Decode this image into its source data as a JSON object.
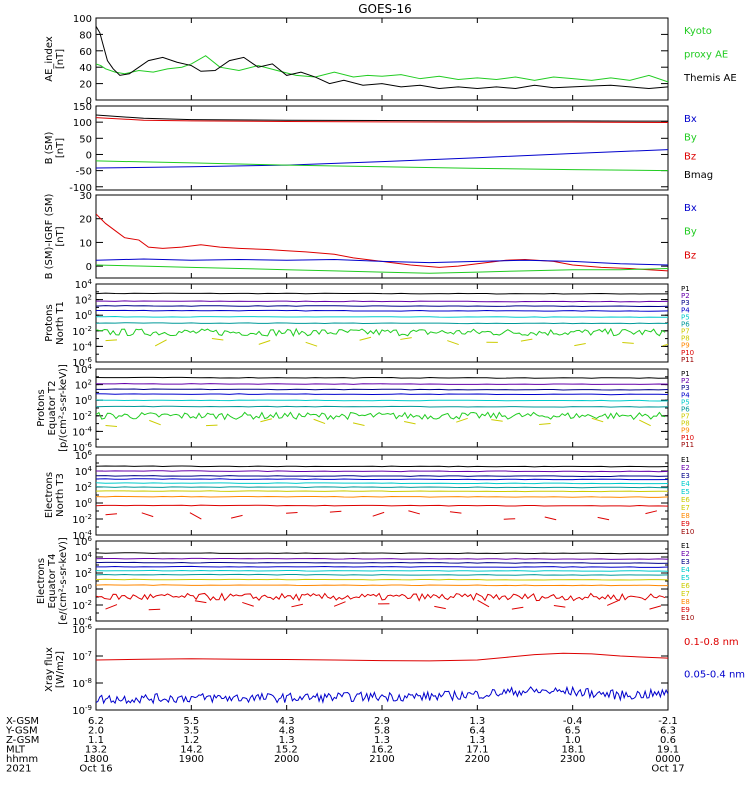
{
  "title": "GOES-16",
  "colors": {
    "black": "#000000",
    "green": "#22cc22",
    "blue": "#0000cc",
    "red": "#dd0000",
    "cyan": "#00cccc",
    "yellow": "#cccc00",
    "orange": "#ff8800",
    "purple": "#6600aa",
    "navy": "#000088",
    "teal": "#009999",
    "maroon": "#990000"
  },
  "chart_data": [
    {
      "type": "line",
      "panel": "ae-index",
      "ylabel": [
        "AE_index",
        "[nT]"
      ],
      "ylim": [
        0,
        100
      ],
      "yticks": [
        {
          "value": 0,
          "label": "0"
        },
        {
          "value": 20,
          "label": "20"
        },
        {
          "value": 40,
          "label": "40"
        },
        {
          "value": 60,
          "label": "60"
        },
        {
          "value": 80,
          "label": "80"
        },
        {
          "value": 100,
          "label": "100"
        }
      ],
      "legend": [
        {
          "text": "Kyoto",
          "color": "green"
        },
        {
          "text": "proxy AE",
          "color": "green"
        },
        {
          "text": "Themis AE",
          "color": "black"
        }
      ],
      "series": [
        {
          "name": "Kyoto proxy AE",
          "color": "green",
          "x": [
            0,
            0.05,
            0.1,
            0.2,
            0.3,
            0.45,
            0.6,
            0.75,
            0.9,
            1.0,
            1.15,
            1.3,
            1.5,
            1.7,
            1.9,
            2.1,
            2.3,
            2.5,
            2.7,
            2.85,
            3.0,
            3.2,
            3.4,
            3.6,
            3.8,
            4.0,
            4.2,
            4.4,
            4.6,
            4.8,
            5.0,
            5.2,
            5.4,
            5.6,
            5.8,
            6.0
          ],
          "y": [
            44,
            42,
            38,
            34,
            32,
            36,
            34,
            38,
            40,
            44,
            54,
            40,
            36,
            42,
            36,
            30,
            28,
            34,
            28,
            30,
            29,
            31,
            26,
            29,
            25,
            27,
            25,
            28,
            24,
            28,
            26,
            24,
            27,
            24,
            30,
            22
          ]
        },
        {
          "name": "Themis AE",
          "color": "black",
          "x": [
            0,
            0.04,
            0.08,
            0.12,
            0.18,
            0.25,
            0.35,
            0.45,
            0.55,
            0.7,
            0.85,
            1.0,
            1.1,
            1.25,
            1.4,
            1.55,
            1.7,
            1.85,
            2.0,
            2.15,
            2.3,
            2.45,
            2.6,
            2.8,
            3.0,
            3.2,
            3.4,
            3.6,
            3.8,
            4.0,
            4.2,
            4.4,
            4.6,
            4.8,
            5.0,
            5.2,
            5.4,
            5.6,
            5.8,
            6.0
          ],
          "y": [
            90,
            82,
            65,
            48,
            38,
            30,
            32,
            40,
            48,
            52,
            46,
            42,
            35,
            36,
            48,
            52,
            40,
            44,
            30,
            34,
            28,
            20,
            24,
            18,
            20,
            16,
            18,
            14,
            16,
            14,
            16,
            14,
            18,
            15,
            16,
            17,
            18,
            16,
            14,
            16
          ]
        }
      ]
    },
    {
      "type": "line",
      "panel": "b-sm",
      "ylabel": [
        "B (SM)",
        "[nT]"
      ],
      "ylim": [
        -110,
        150
      ],
      "yticks": [
        {
          "value": -100,
          "label": "-100"
        },
        {
          "value": -50,
          "label": "-50"
        },
        {
          "value": 0,
          "label": "0"
        },
        {
          "value": 50,
          "label": "50"
        },
        {
          "value": 100,
          "label": "100"
        },
        {
          "value": 150,
          "label": "150"
        }
      ],
      "legend": [
        {
          "text": "Bx",
          "color": "blue"
        },
        {
          "text": "By",
          "color": "green"
        },
        {
          "text": "Bz",
          "color": "red"
        },
        {
          "text": "Bmag",
          "color": "black"
        }
      ],
      "series": [
        {
          "name": "Bmag",
          "color": "black",
          "x": [
            0,
            0.5,
            1,
            2,
            3,
            4,
            5,
            6
          ],
          "y": [
            122,
            112,
            108,
            106,
            105,
            104,
            104,
            103
          ]
        },
        {
          "name": "Bz",
          "color": "red",
          "x": [
            0,
            0.5,
            1,
            2,
            3,
            4,
            5,
            6
          ],
          "y": [
            114,
            106,
            104,
            102,
            101,
            100,
            100,
            99
          ]
        },
        {
          "name": "Bx",
          "color": "blue",
          "x": [
            0,
            1,
            2,
            3,
            4,
            5,
            6
          ],
          "y": [
            -42,
            -38,
            -33,
            -22,
            -10,
            3,
            15
          ]
        },
        {
          "name": "By",
          "color": "green",
          "x": [
            0,
            1,
            2,
            3,
            4,
            5,
            6
          ],
          "y": [
            -20,
            -26,
            -33,
            -38,
            -43,
            -47,
            -50
          ]
        }
      ]
    },
    {
      "type": "line",
      "panel": "b-sm-igrf",
      "ylabel": [
        "B (SM)-IGRF (SM)",
        "[nT]"
      ],
      "ylim": [
        -5,
        30
      ],
      "yticks": [
        {
          "value": 0,
          "label": "0"
        },
        {
          "value": 10,
          "label": "10"
        },
        {
          "value": 20,
          "label": "20"
        },
        {
          "value": 30,
          "label": "30"
        }
      ],
      "legend": [
        {
          "text": "Bx",
          "color": "blue"
        },
        {
          "text": "By",
          "color": "green"
        },
        {
          "text": "Bz",
          "color": "red"
        }
      ],
      "series": [
        {
          "name": "Bz",
          "color": "red",
          "x": [
            0,
            0.1,
            0.2,
            0.3,
            0.45,
            0.55,
            0.7,
            0.9,
            1.1,
            1.3,
            1.5,
            1.8,
            2.0,
            2.2,
            2.5,
            2.7,
            2.9,
            3.1,
            3.3,
            3.6,
            3.8,
            4.0,
            4.3,
            4.5,
            4.8,
            5.0,
            5.3,
            5.6,
            5.8,
            6.0
          ],
          "y": [
            22,
            18,
            15,
            12,
            11,
            8,
            7.5,
            8,
            9,
            8,
            7.5,
            7,
            6.5,
            6,
            5,
            3.5,
            2.5,
            1.5,
            0.5,
            -0.5,
            0,
            1,
            2.5,
            2.8,
            2,
            0.5,
            -0.5,
            -1,
            -1.5,
            -2
          ]
        },
        {
          "name": "Bx",
          "color": "blue",
          "x": [
            0,
            0.5,
            1,
            1.5,
            2,
            2.5,
            3,
            3.5,
            4,
            4.5,
            5,
            5.5,
            6
          ],
          "y": [
            2.5,
            3,
            2.5,
            2.8,
            2.5,
            2.8,
            2,
            1.5,
            2,
            2.5,
            2,
            1,
            0.5
          ]
        },
        {
          "name": "By",
          "color": "green",
          "x": [
            0,
            0.5,
            1,
            1.5,
            2,
            2.5,
            3,
            3.5,
            4,
            4.5,
            5,
            5.5,
            6
          ],
          "y": [
            0.5,
            0,
            -0.5,
            -1,
            -1.5,
            -2,
            -2.5,
            -3,
            -2.5,
            -2,
            -1.5,
            -1.5,
            -1
          ]
        }
      ]
    },
    {
      "type": "line",
      "panel": "protons-north",
      "yscale": "log",
      "ylabel": [
        "Protons",
        "North T1"
      ],
      "ylim_exp": [
        -6,
        4
      ],
      "yticks_exp": [
        -6,
        -4,
        -2,
        0,
        2,
        4
      ],
      "legend": [
        {
          "text": "P1",
          "color": "black"
        },
        {
          "text": "P2",
          "color": "purple"
        },
        {
          "text": "P3",
          "color": "navy"
        },
        {
          "text": "P4",
          "color": "blue"
        },
        {
          "text": "P5",
          "color": "cyan"
        },
        {
          "text": "P6",
          "color": "teal"
        },
        {
          "text": "P7",
          "color": "yellow"
        },
        {
          "text": "P8",
          "color": "yellow"
        },
        {
          "text": "P9",
          "color": "orange"
        },
        {
          "text": "P10",
          "color": "red"
        },
        {
          "text": "P11",
          "color": "maroon"
        }
      ],
      "series": [
        {
          "color": "black",
          "log_level": 2.8
        },
        {
          "color": "purple",
          "log_level": 1.8
        },
        {
          "color": "navy",
          "log_level": 1.2
        },
        {
          "color": "blue",
          "log_level": 0.6
        },
        {
          "color": "cyan",
          "log_level": -0.2
        },
        {
          "color": "teal",
          "log_level": -1.0
        },
        {
          "color": "green",
          "log_level": -2.2,
          "noisy": true
        },
        {
          "color": "yellow",
          "log_level": -3.4,
          "segments": true
        }
      ]
    },
    {
      "type": "line",
      "panel": "protons-equator",
      "yscale": "log",
      "ylabel": [
        "Protons",
        "Equator T2",
        "[p/(cm²-s-sr-keV)]"
      ],
      "ylim_exp": [
        -6,
        4
      ],
      "yticks_exp": [
        -6,
        -4,
        -2,
        0,
        2,
        4
      ],
      "legend": [
        {
          "text": "P1",
          "color": "black"
        },
        {
          "text": "P2",
          "color": "purple"
        },
        {
          "text": "P3",
          "color": "navy"
        },
        {
          "text": "P4",
          "color": "blue"
        },
        {
          "text": "P5",
          "color": "cyan"
        },
        {
          "text": "P6",
          "color": "teal"
        },
        {
          "text": "P7",
          "color": "yellow"
        },
        {
          "text": "P8",
          "color": "yellow"
        },
        {
          "text": "P9",
          "color": "orange"
        },
        {
          "text": "P10",
          "color": "red"
        },
        {
          "text": "P11",
          "color": "maroon"
        }
      ],
      "series": [
        {
          "color": "black",
          "log_level": 2.9
        },
        {
          "color": "purple",
          "log_level": 2.1
        },
        {
          "color": "navy",
          "log_level": 1.4
        },
        {
          "color": "blue",
          "log_level": 0.8
        },
        {
          "color": "cyan",
          "log_level": 0.0
        },
        {
          "color": "teal",
          "log_level": -0.8
        },
        {
          "color": "green",
          "log_level": -2.0,
          "noisy": true
        },
        {
          "color": "yellow",
          "log_level": -2.9,
          "segments": true
        }
      ]
    },
    {
      "type": "line",
      "panel": "electrons-north",
      "yscale": "log",
      "ylabel": [
        "Electrons",
        "North T3"
      ],
      "ylim_exp": [
        -4,
        6
      ],
      "yticks_exp": [
        -4,
        -2,
        0,
        2,
        4,
        6
      ],
      "legend": [
        {
          "text": "E1",
          "color": "black"
        },
        {
          "text": "E2",
          "color": "purple"
        },
        {
          "text": "E3",
          "color": "navy"
        },
        {
          "text": "E4",
          "color": "cyan"
        },
        {
          "text": "E5",
          "color": "cyan"
        },
        {
          "text": "E6",
          "color": "yellow"
        },
        {
          "text": "E7",
          "color": "yellow"
        },
        {
          "text": "E8",
          "color": "orange"
        },
        {
          "text": "E9",
          "color": "red"
        },
        {
          "text": "E10",
          "color": "maroon"
        }
      ],
      "series": [
        {
          "color": "black",
          "log_level": 4.6
        },
        {
          "color": "purple",
          "log_level": 4.0
        },
        {
          "color": "navy",
          "log_level": 3.4
        },
        {
          "color": "blue",
          "log_level": 3.0
        },
        {
          "color": "cyan",
          "log_level": 2.5
        },
        {
          "color": "teal",
          "log_level": 2.0
        },
        {
          "color": "yellow",
          "log_level": 1.5
        },
        {
          "color": "orange",
          "log_level": 0.8
        },
        {
          "color": "red",
          "log_level": -0.3
        },
        {
          "color": "red",
          "log_level": -1.5,
          "segments": true
        }
      ]
    },
    {
      "type": "line",
      "panel": "electrons-equator",
      "yscale": "log",
      "ylabel": [
        "Electrons",
        "Equator T4",
        "[e/(cm²-s-sr-keV)]"
      ],
      "ylim_exp": [
        -4,
        6
      ],
      "yticks_exp": [
        -4,
        -2,
        0,
        2,
        4,
        6
      ],
      "legend": [
        {
          "text": "E1",
          "color": "black"
        },
        {
          "text": "E2",
          "color": "purple"
        },
        {
          "text": "E3",
          "color": "navy"
        },
        {
          "text": "E4",
          "color": "cyan"
        },
        {
          "text": "E5",
          "color": "cyan"
        },
        {
          "text": "E6",
          "color": "yellow"
        },
        {
          "text": "E7",
          "color": "yellow"
        },
        {
          "text": "E8",
          "color": "orange"
        },
        {
          "text": "E9",
          "color": "red"
        },
        {
          "text": "E10",
          "color": "maroon"
        }
      ],
      "series": [
        {
          "color": "black",
          "log_level": 4.5
        },
        {
          "color": "purple",
          "log_level": 3.8
        },
        {
          "color": "navy",
          "log_level": 3.3
        },
        {
          "color": "blue",
          "log_level": 2.8
        },
        {
          "color": "cyan",
          "log_level": 2.3
        },
        {
          "color": "teal",
          "log_level": 1.8
        },
        {
          "color": "yellow",
          "log_level": 1.2
        },
        {
          "color": "orange",
          "log_level": 0.5
        },
        {
          "color": "red",
          "log_level": -1.0,
          "noisy": true
        },
        {
          "color": "red",
          "log_level": -2.0,
          "segments": true
        }
      ]
    },
    {
      "type": "line",
      "panel": "xray-flux",
      "yscale": "log",
      "ylabel": [
        "Xray flux",
        "[W/m2]"
      ],
      "ylim_exp": [
        -9,
        -6
      ],
      "yticks_exp": [
        -9,
        -8,
        -7,
        -6
      ],
      "legend": [
        {
          "text": "0.1-0.8 nm",
          "color": "red"
        },
        {
          "text": "0.05-0.4 nm",
          "color": "blue"
        }
      ],
      "series": [
        {
          "name": "0.1-0.8 nm",
          "color": "red",
          "x": [
            0,
            0.5,
            1,
            1.5,
            2,
            2.5,
            3,
            3.5,
            4,
            4.3,
            4.6,
            4.9,
            5.2,
            5.5,
            5.8,
            6
          ],
          "y": [
            -7.15,
            -7.12,
            -7.1,
            -7.12,
            -7.13,
            -7.15,
            -7.17,
            -7.18,
            -7.15,
            -7.05,
            -6.95,
            -6.9,
            -6.92,
            -7.0,
            -7.05,
            -7.08
          ]
        },
        {
          "name": "0.05-0.4 nm",
          "color": "blue",
          "log_level": -8.55,
          "noisy": true,
          "x": [
            0,
            1,
            2,
            3,
            3.5,
            4,
            4.5,
            5,
            5.5,
            6
          ],
          "y": [
            -8.6,
            -8.55,
            -8.55,
            -8.5,
            -8.5,
            -8.42,
            -8.3,
            -8.32,
            -8.45,
            -8.4
          ]
        }
      ]
    }
  ],
  "x_axis": {
    "range_hours": [
      0,
      6
    ],
    "tick_hours": [
      0,
      1,
      2,
      3,
      4,
      5,
      6
    ],
    "rows": [
      {
        "label": "X-GSM",
        "values": [
          "6.2",
          "5.5",
          "4.3",
          "2.9",
          "1.3",
          "-0.4",
          "-2.1"
        ]
      },
      {
        "label": "Y-GSM",
        "values": [
          "2.0",
          "3.5",
          "4.8",
          "5.8",
          "6.4",
          "6.5",
          "6.3"
        ]
      },
      {
        "label": "Z-GSM",
        "values": [
          "1.1",
          "1.2",
          "1.3",
          "1.3",
          "1.3",
          "1.0",
          "0.6"
        ]
      },
      {
        "label": "MLT",
        "values": [
          "13.2",
          "14.2",
          "15.2",
          "16.2",
          "17.1",
          "18.1",
          "19.1"
        ]
      },
      {
        "label": "hhmm",
        "values": [
          "1800",
          "1900",
          "2000",
          "2100",
          "2200",
          "2300",
          "0000"
        ]
      },
      {
        "label": "2021",
        "values": [
          "Oct 16",
          "",
          "",
          "",
          "",
          "",
          "Oct 17"
        ]
      }
    ]
  }
}
